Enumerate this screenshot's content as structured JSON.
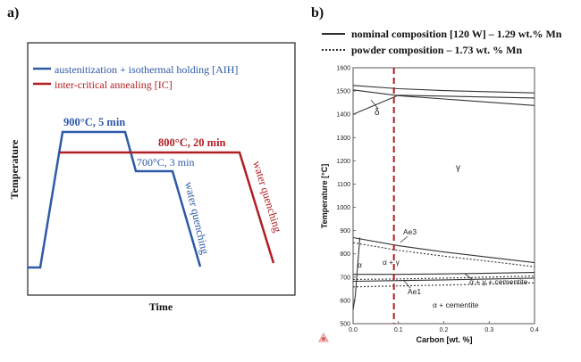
{
  "panel_a": {
    "label": "a)",
    "chart_data": {
      "type": "line",
      "xlabel": "Time",
      "ylabel": "Temperature",
      "legend": [
        {
          "name": "austenitization + isothermal holding [AIH]",
          "color": "#2e5aa8"
        },
        {
          "name": "inter-critical annealing [IC]",
          "color": "#b01f24"
        }
      ],
      "annotations": [
        {
          "text": "900°C, 5 min",
          "color": "#2e5aa8"
        },
        {
          "text": "800°C, 20 min",
          "color": "#b01f24"
        },
        {
          "text": "700°C, 3 min",
          "color": "#2e5aa8"
        },
        {
          "text": "water quenching",
          "color": "#2e5aa8"
        },
        {
          "text": "water quenching",
          "color": "#b01f24"
        }
      ],
      "series": [
        {
          "name": "AIH",
          "steps": [
            {
              "stage": "heating",
              "temp_c": 900
            },
            {
              "stage": "hold",
              "temp_c": 900,
              "duration_min": 5
            },
            {
              "stage": "cool",
              "temp_c": 700
            },
            {
              "stage": "hold",
              "temp_c": 700,
              "duration_min": 3
            },
            {
              "stage": "water quenching"
            }
          ]
        },
        {
          "name": "IC",
          "steps": [
            {
              "stage": "heating",
              "temp_c": 800
            },
            {
              "stage": "hold",
              "temp_c": 800,
              "duration_min": 20
            },
            {
              "stage": "water quenching"
            }
          ]
        }
      ]
    }
  },
  "panel_b": {
    "label": "b)",
    "chart_data": {
      "type": "line",
      "title": "",
      "xlabel": "Carbon [wt. %]",
      "ylabel": "Temperature [°C]",
      "xlim": [
        0,
        0.4
      ],
      "ylim": [
        500,
        1600
      ],
      "xticks": [
        "0.0",
        "0.1",
        "0.2",
        "0.3",
        "0.4"
      ],
      "yticks": [
        "500",
        "600",
        "700",
        "800",
        "900",
        "1000",
        "1100",
        "1200",
        "1300",
        "1400",
        "1500",
        "1600"
      ],
      "legend": [
        {
          "name": "nominal composition [120 W] – 1.29 wt.% Mn",
          "style": "solid"
        },
        {
          "name": "powder composition – 1.73 wt. % Mn",
          "style": "dotted"
        }
      ],
      "phase_labels": [
        "γ",
        "δ",
        "Ae3",
        "α",
        "α + γ",
        "α + γ + cementite",
        "Ae1",
        "α + cementite"
      ],
      "composition_line_x": 0.09,
      "series": [
        {
          "name": "nominal",
          "style": "solid",
          "lines": [
            {
              "label": "liquidus",
              "x": [
                0.0,
                0.1,
                0.2,
                0.4
              ],
              "y": [
                1524,
                1510,
                1502,
                1492
              ]
            },
            {
              "label": "delta boundary",
              "x": [
                0.0,
                0.1,
                0.2,
                0.4
              ],
              "y": [
                1400,
                1482,
                1478,
                1470
              ]
            },
            {
              "label": "solidus",
              "x": [
                0.0,
                0.1,
                0.2,
                0.4
              ],
              "y": [
                1505,
                1480,
                1466,
                1438
              ]
            },
            {
              "label": "Ae3",
              "x": [
                0.0,
                0.1,
                0.2,
                0.3,
                0.4
              ],
              "y": [
                870,
                835,
                808,
                785,
                762
              ]
            },
            {
              "label": "upper Ae1",
              "x": [
                0.0,
                0.1,
                0.2,
                0.3,
                0.4
              ],
              "y": [
                712,
                712,
                714,
                717,
                720
              ]
            },
            {
              "label": "Ae1",
              "x": [
                0.0,
                0.1,
                0.2,
                0.3,
                0.4
              ],
              "y": [
                682,
                685,
                688,
                692,
                696
              ]
            },
            {
              "label": "alpha solvus",
              "x": [
                0.0,
                0.005,
                0.008,
                0.015
              ],
              "y": [
                560,
                620,
                700,
                870
              ]
            }
          ]
        },
        {
          "name": "powder",
          "style": "dotted",
          "lines": [
            {
              "label": "Ae3",
              "x": [
                0.0,
                0.1,
                0.2,
                0.3,
                0.4
              ],
              "y": [
                848,
                815,
                790,
                768,
                745
              ]
            },
            {
              "label": "upper Ae1",
              "x": [
                0.0,
                0.1,
                0.2,
                0.3,
                0.4
              ],
              "y": [
                690,
                692,
                696,
                700,
                705
              ]
            },
            {
              "label": "Ae1",
              "x": [
                0.0,
                0.1,
                0.2,
                0.3,
                0.4
              ],
              "y": [
                658,
                662,
                666,
                670,
                675
              ]
            }
          ]
        }
      ]
    }
  }
}
